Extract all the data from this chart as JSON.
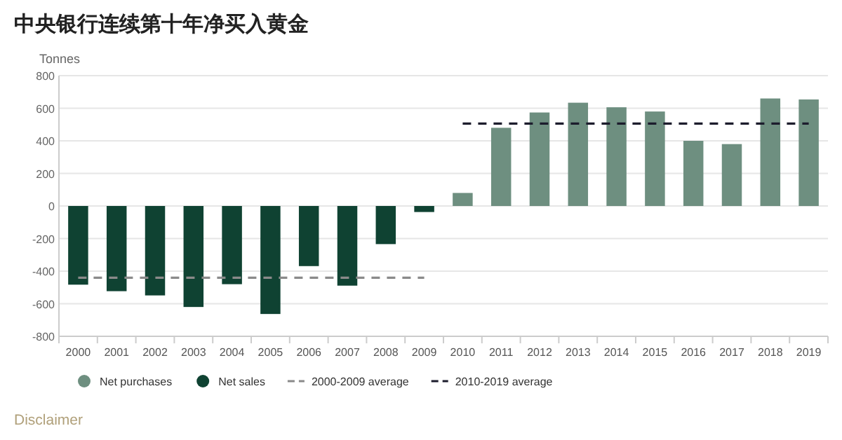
{
  "chart_data": {
    "type": "bar",
    "title": "中央银行连续第十年净买入黄金",
    "ylabel": "Tonnes",
    "categories": [
      "2000",
      "2001",
      "2002",
      "2003",
      "2004",
      "2005",
      "2006",
      "2007",
      "2008",
      "2009",
      "2010",
      "2011",
      "2012",
      "2013",
      "2014",
      "2015",
      "2016",
      "2017",
      "2018",
      "2019"
    ],
    "series": [
      {
        "name": "Net purchases",
        "color": "#6e8f80",
        "values": [
          null,
          null,
          null,
          null,
          null,
          null,
          null,
          null,
          null,
          null,
          80,
          480,
          574,
          634,
          606,
          580,
          400,
          380,
          660,
          654
        ]
      },
      {
        "name": "Net sales",
        "color": "#0f4232",
        "values": [
          -483,
          -523,
          -549,
          -620,
          -480,
          -663,
          -369,
          -489,
          -234,
          -37,
          null,
          null,
          null,
          null,
          null,
          null,
          null,
          null,
          null,
          null
        ]
      },
      {
        "name": "2000-2009 average",
        "type": "line",
        "line_style": "dashed",
        "color": "#8a8a8a",
        "values": [
          -440,
          -440,
          -440,
          -440,
          -440,
          -440,
          -440,
          -440,
          -440,
          -440,
          null,
          null,
          null,
          null,
          null,
          null,
          null,
          null,
          null,
          null
        ]
      },
      {
        "name": "2010-2019 average",
        "type": "line",
        "line_style": "dashed",
        "color": "#1c1c2c",
        "values": [
          null,
          null,
          null,
          null,
          null,
          null,
          null,
          null,
          null,
          null,
          506,
          506,
          506,
          506,
          506,
          506,
          506,
          506,
          506,
          506
        ]
      }
    ],
    "ylim": [
      -800,
      800
    ],
    "yticks": [
      -800,
      -600,
      -400,
      -200,
      0,
      200,
      400,
      600,
      800
    ],
    "grid": "y",
    "legend": "bottom",
    "annotations": [
      "Disclaimer"
    ]
  }
}
